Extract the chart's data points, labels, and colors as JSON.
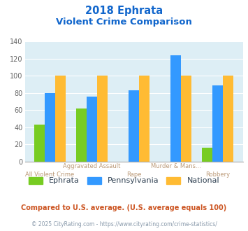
{
  "title_line1": "2018 Ephrata",
  "title_line2": "Violent Crime Comparison",
  "categories_top": [
    "Aggravated Assault",
    "Murder & Mans..."
  ],
  "categories_bottom": [
    "All Violent Crime",
    "Rape",
    "Robbery"
  ],
  "ephrata": [
    43,
    62,
    0,
    0,
    16
  ],
  "pennsylvania": [
    80,
    76,
    83,
    124,
    89
  ],
  "national": [
    100,
    100,
    100,
    100,
    100
  ],
  "ephrata_color": "#77cc22",
  "pennsylvania_color": "#3399ff",
  "national_color": "#ffbb33",
  "ylim": [
    0,
    140
  ],
  "yticks": [
    0,
    20,
    40,
    60,
    80,
    100,
    120,
    140
  ],
  "bg_color": "#ddeef5",
  "title_color": "#1166cc",
  "xlabel_top_color": "#bb9977",
  "xlabel_bottom_color": "#bb9977",
  "footer_text": "Compared to U.S. average. (U.S. average equals 100)",
  "credit_text": "© 2025 CityRating.com - https://www.cityrating.com/crime-statistics/",
  "footer_color": "#cc5522",
  "credit_color": "#8899aa",
  "bar_width": 0.25,
  "legend_label_color": "#334455"
}
